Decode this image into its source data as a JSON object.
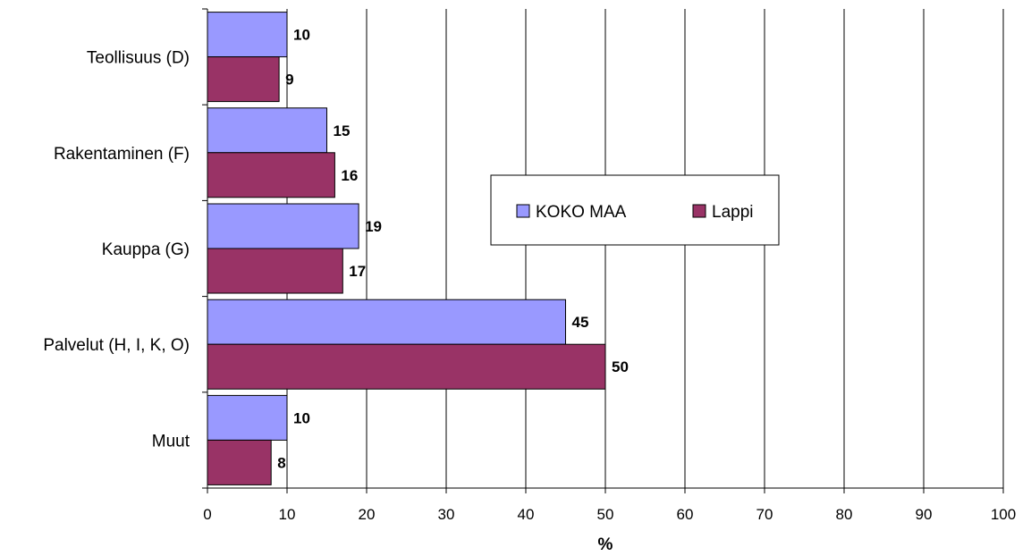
{
  "chart_data": {
    "type": "bar",
    "orientation": "horizontal",
    "categories": [
      "Teollisuus (D)",
      "Rakentaminen (F)",
      "Kauppa (G)",
      "Palvelut (H, I, K, O)",
      "Muut"
    ],
    "series": [
      {
        "name": "KOKO MAA",
        "values": [
          10,
          15,
          19,
          45,
          10
        ],
        "value_labels": [
          "10",
          "15",
          "19",
          "45",
          "10"
        ],
        "color": "#9999ff"
      },
      {
        "name": "Lappi",
        "values": [
          9,
          16,
          17,
          50,
          8
        ],
        "value_labels": [
          "9",
          "16",
          "17",
          "50",
          "8"
        ],
        "color": "#993366"
      }
    ],
    "xlabel": "%",
    "xlim": [
      0,
      100
    ],
    "xticks": [
      "0",
      "10",
      "20",
      "30",
      "40",
      "50",
      "60",
      "70",
      "80",
      "90",
      "100"
    ],
    "grid": "vertical",
    "legend_position": "center-right"
  }
}
